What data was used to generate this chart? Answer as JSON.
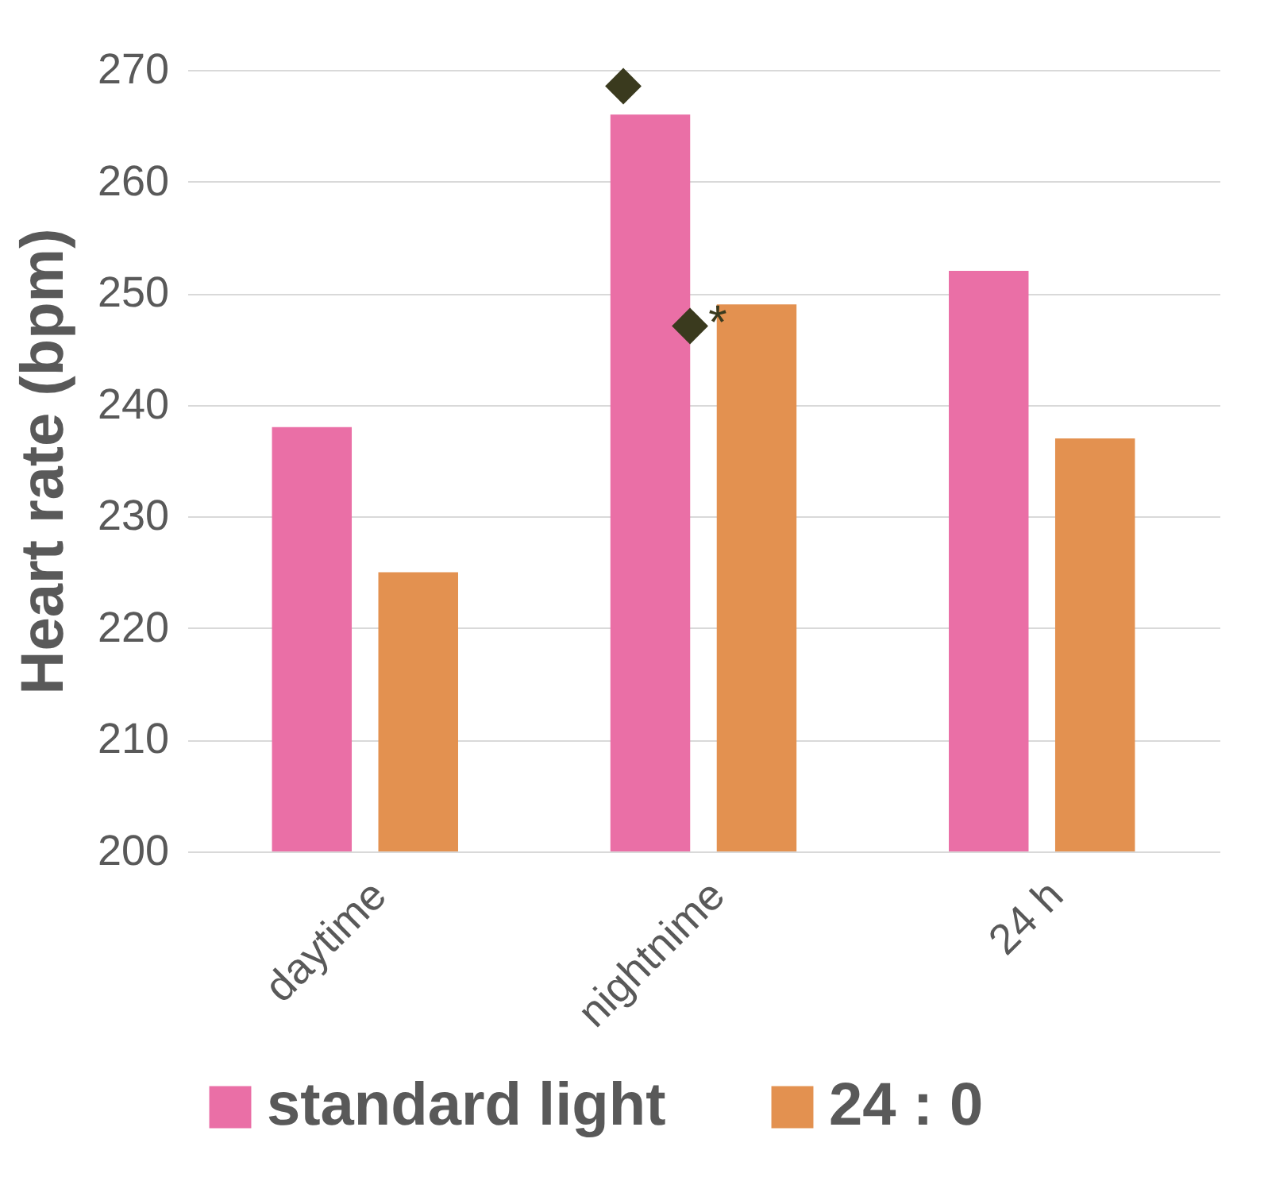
{
  "chart_data": {
    "type": "bar",
    "ylabel": "Heart rate (bpm)",
    "categories": [
      "daytime",
      "nightnime",
      "24 h"
    ],
    "series": [
      {
        "name": "standard light",
        "color": "#ea6fa6",
        "values": [
          238,
          266,
          252
        ]
      },
      {
        "name": "24 : 0",
        "color": "#e39150",
        "values": [
          225,
          249,
          237
        ]
      }
    ],
    "ylim": [
      200,
      270
    ],
    "yticks": [
      200,
      210,
      220,
      230,
      240,
      250,
      260,
      270
    ],
    "grid": "y",
    "legend": "bottom",
    "annotations": [
      {
        "text": "◆",
        "x": "nightnime",
        "y": 266
      },
      "◆*"
    ]
  }
}
